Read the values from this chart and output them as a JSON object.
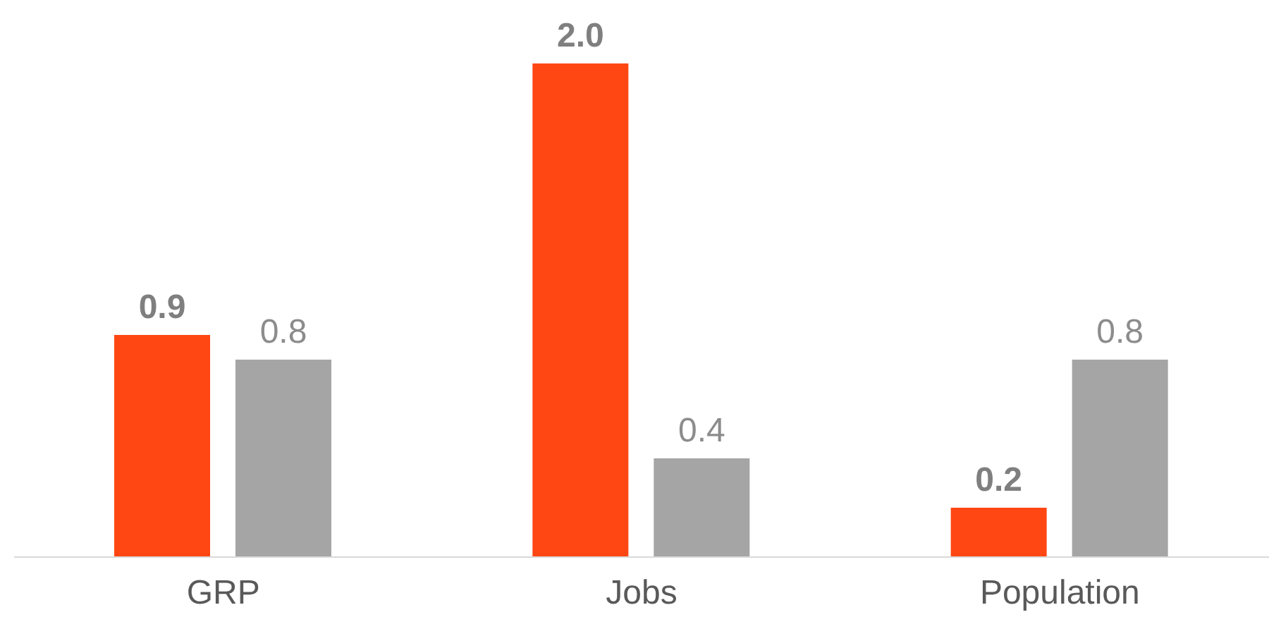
{
  "chart_data": {
    "type": "bar",
    "categories": [
      "GRP",
      "Jobs",
      "Population"
    ],
    "series": [
      {
        "color": "#ff4713",
        "values": [
          0.9,
          2.0,
          0.2
        ],
        "value_labels": [
          "0.9",
          "2.0",
          "0.2"
        ]
      },
      {
        "color": "#a5a5a5",
        "values": [
          0.8,
          0.4,
          0.8
        ],
        "value_labels": [
          "0.8",
          "0.4",
          "0.8"
        ]
      }
    ],
    "grid": false,
    "legend": false
  }
}
